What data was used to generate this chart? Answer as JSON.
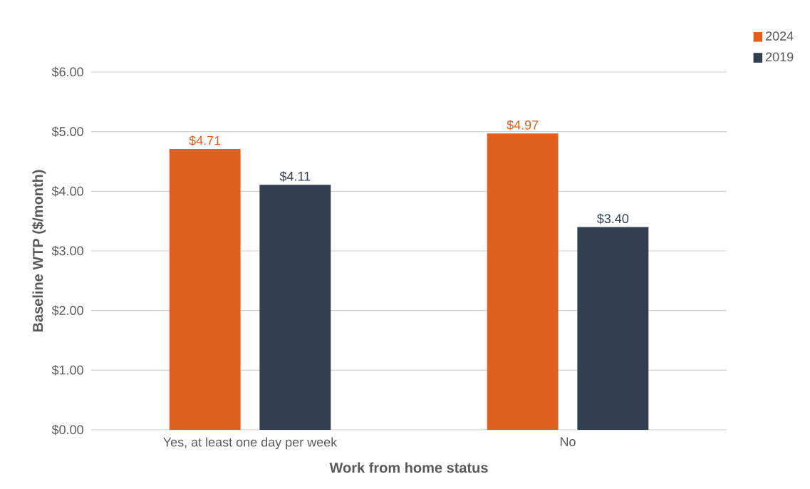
{
  "chart_data": {
    "type": "bar",
    "categories": [
      "Yes, at least one day per week",
      "No"
    ],
    "series": [
      {
        "name": "2024",
        "color": "#e06020",
        "values": [
          4.71,
          4.97
        ],
        "value_labels": [
          "$4.71",
          "$4.97"
        ]
      },
      {
        "name": "2019",
        "color": "#323f50",
        "values": [
          4.11,
          3.4
        ],
        "value_labels": [
          "$4.11",
          "$3.40"
        ]
      }
    ],
    "xlabel": "Work from home status",
    "ylabel": "Baseline WTP ($/month)",
    "ylim": [
      0,
      6
    ],
    "yticks": [
      {
        "value": 0,
        "label": "$0.00"
      },
      {
        "value": 1,
        "label": "$1.00"
      },
      {
        "value": 2,
        "label": "$2.00"
      },
      {
        "value": 3,
        "label": "$3.00"
      },
      {
        "value": 4,
        "label": "$4.00"
      },
      {
        "value": 5,
        "label": "$5.00"
      },
      {
        "value": 6,
        "label": "$6.00"
      }
    ],
    "grid": "y",
    "legend": "top right"
  }
}
